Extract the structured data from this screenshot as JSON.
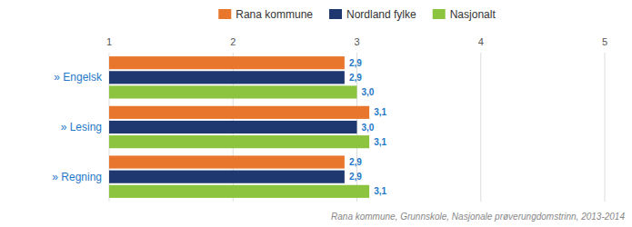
{
  "chart_data": {
    "type": "bar",
    "orientation": "horizontal",
    "categories": [
      "» Engelsk",
      "» Lesing",
      "» Regning"
    ],
    "series": [
      {
        "name": "Rana kommune",
        "color": "#E8762C",
        "values": [
          2.9,
          3.1,
          2.9
        ],
        "value_labels": [
          "2,9",
          "3,1",
          "2,9"
        ]
      },
      {
        "name": "Nordland fylke",
        "color": "#1F3870",
        "values": [
          2.9,
          3.0,
          2.9
        ],
        "value_labels": [
          "2,9",
          "3,0",
          "2,9"
        ]
      },
      {
        "name": "Nasjonalt",
        "color": "#8DC43F",
        "values": [
          3.0,
          3.1,
          3.1
        ],
        "value_labels": [
          "3,0",
          "3,1",
          "3,1"
        ]
      }
    ],
    "xlim": [
      1,
      5
    ],
    "xticks": [
      1,
      2,
      3,
      4,
      5
    ],
    "grid": true,
    "legend": "top",
    "data_labels": true,
    "annotations": [
      "Rana kommune, Grunnskole, Nasjonale prøverungdomstrinn, 2013-2014"
    ]
  }
}
